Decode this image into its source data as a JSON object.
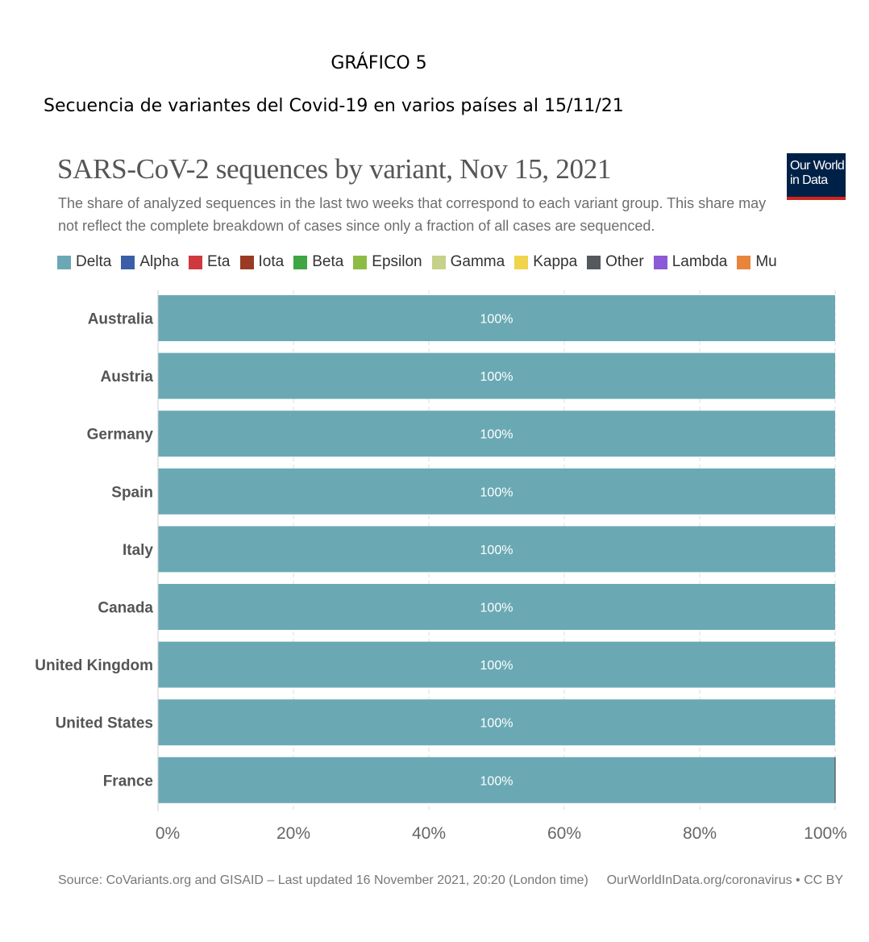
{
  "document": {
    "heading": "GRÁFICO 5",
    "subheading": "Secuencia de variantes del Covid-19 en varios países al 15/11/21"
  },
  "logo": {
    "line1": "Our World",
    "line2": "in Data"
  },
  "legend": [
    {
      "name": "Delta",
      "color": "#6aa9b4"
    },
    {
      "name": "Alpha",
      "color": "#3a5fa8"
    },
    {
      "name": "Eta",
      "color": "#d0383f"
    },
    {
      "name": "Iota",
      "color": "#9b3a22"
    },
    {
      "name": "Beta",
      "color": "#3ea642"
    },
    {
      "name": "Epsilon",
      "color": "#8bbd44"
    },
    {
      "name": "Gamma",
      "color": "#c6d18a"
    },
    {
      "name": "Kappa",
      "color": "#f0d44b"
    },
    {
      "name": "Other",
      "color": "#55595e"
    },
    {
      "name": "Lambda",
      "color": "#8b5ad6"
    },
    {
      "name": "Mu",
      "color": "#e8843b"
    }
  ],
  "chart_data": {
    "type": "bar",
    "orientation": "horizontal",
    "stacked": true,
    "title": "SARS-CoV-2 sequences by variant, Nov 15, 2021",
    "subtitle": "The share of analyzed sequences in the last two weeks that correspond to each variant group. This share may not reflect the complete breakdown of cases since only a fraction of all cases are sequenced.",
    "categories": [
      "Australia",
      "Austria",
      "Germany",
      "Spain",
      "Italy",
      "Canada",
      "United Kingdom",
      "United States",
      "France"
    ],
    "series": [
      {
        "name": "Delta",
        "color": "#6aa9b4",
        "values": [
          100,
          100,
          100,
          100,
          100,
          100,
          100,
          100,
          99.9
        ]
      },
      {
        "name": "Other",
        "color": "#55595e",
        "values": [
          0,
          0,
          0,
          0,
          0,
          0,
          0,
          0,
          0.1
        ]
      }
    ],
    "data_labels": [
      "100%",
      "100%",
      "100%",
      "100%",
      "100%",
      "100%",
      "100%",
      "100%",
      "100%"
    ],
    "x_ticks": [
      "0%",
      "20%",
      "40%",
      "60%",
      "80%",
      "100%"
    ],
    "xlim": [
      0,
      100
    ],
    "grid": "vertical dashed",
    "legend_position": "top"
  },
  "footer": {
    "source": "Source: CoVariants.org and GISAID – Last updated 16 November 2021, 20:20 (London time)",
    "credit": "OurWorldInData.org/coronavirus • CC BY"
  }
}
